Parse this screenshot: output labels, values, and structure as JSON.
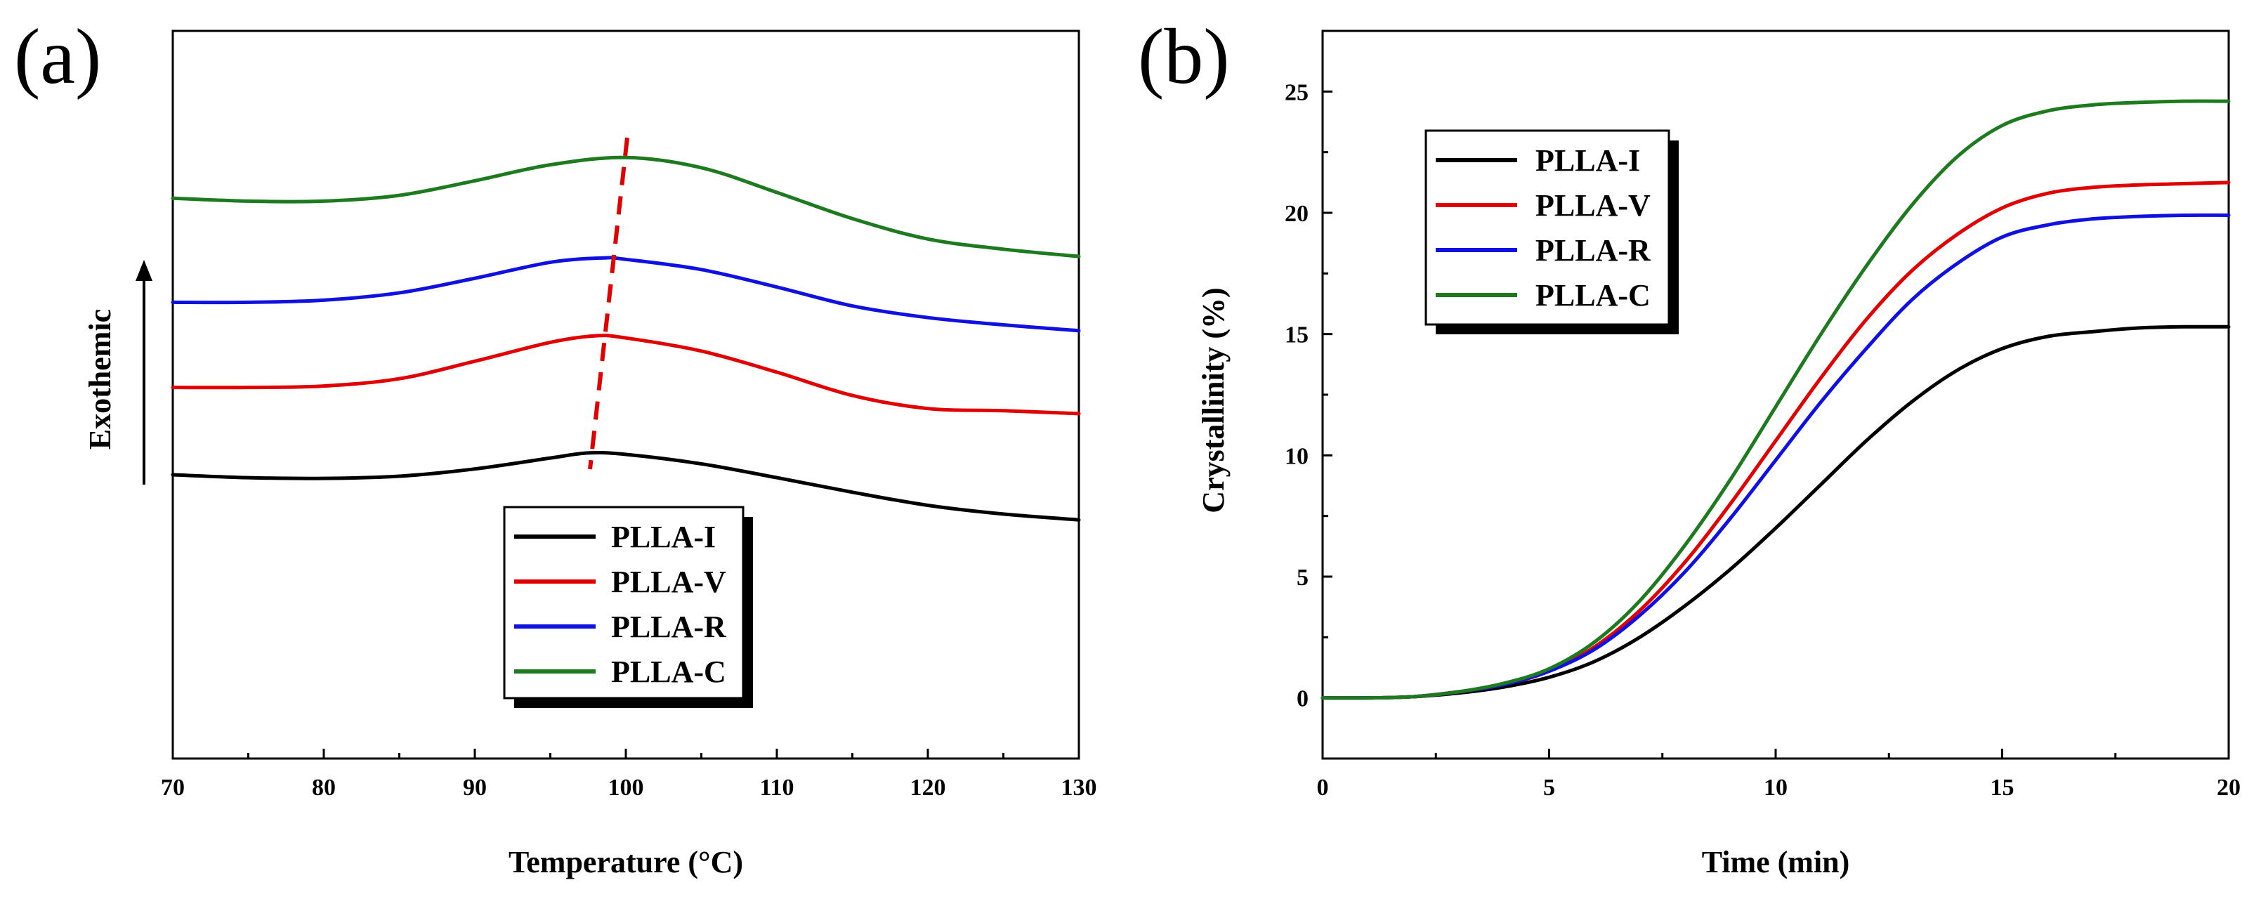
{
  "chart_data": [
    {
      "panel_label": "(a)",
      "type": "line",
      "xlabel": "Temperature (°C)",
      "ylabel": "Exothemic",
      "xlim": [
        70,
        130
      ],
      "ylim": [
        0,
        1
      ],
      "xticks": [
        "70",
        "80",
        "90",
        "100",
        "110",
        "120",
        "130"
      ],
      "yticks": [],
      "legend_position": "bottom-center",
      "annotation": "dashed red line tracing peak shift from ~97.5°C to ~100°C",
      "series": [
        {
          "name": "PLLA-I",
          "color": "#000000",
          "x": [
            70,
            75,
            80,
            85,
            90,
            95,
            97.5,
            100,
            105,
            110,
            115,
            120,
            125,
            130
          ],
          "y": [
            0.39,
            0.386,
            0.385,
            0.388,
            0.398,
            0.413,
            0.42,
            0.418,
            0.405,
            0.386,
            0.366,
            0.348,
            0.336,
            0.328
          ]
        },
        {
          "name": "PLLA-V",
          "color": "#e00000",
          "x": [
            70,
            75,
            80,
            85,
            90,
            95,
            98,
            100,
            105,
            110,
            115,
            120,
            125,
            130
          ],
          "y": [
            0.51,
            0.51,
            0.512,
            0.522,
            0.546,
            0.572,
            0.581,
            0.578,
            0.56,
            0.531,
            0.499,
            0.481,
            0.478,
            0.474
          ]
        },
        {
          "name": "PLLA-R",
          "color": "#1010e0",
          "x": [
            70,
            75,
            80,
            85,
            90,
            95,
            98.5,
            100,
            105,
            110,
            115,
            120,
            125,
            130
          ],
          "y": [
            0.627,
            0.627,
            0.63,
            0.64,
            0.66,
            0.682,
            0.688,
            0.686,
            0.672,
            0.648,
            0.622,
            0.606,
            0.596,
            0.588
          ]
        },
        {
          "name": "PLLA-C",
          "color": "#1e7a1e",
          "x": [
            70,
            75,
            80,
            85,
            90,
            95,
            100,
            105,
            110,
            115,
            120,
            125,
            130
          ],
          "y": [
            0.77,
            0.766,
            0.766,
            0.774,
            0.794,
            0.816,
            0.826,
            0.812,
            0.778,
            0.742,
            0.714,
            0.7,
            0.69
          ]
        }
      ]
    },
    {
      "panel_label": "(b)",
      "type": "line",
      "xlabel": "Time (min)",
      "ylabel": "Crystallinity (%)",
      "xlim": [
        0,
        20
      ],
      "ylim": [
        -2.5,
        27.5
      ],
      "xticks": [
        "0",
        "5",
        "10",
        "15",
        "20"
      ],
      "yticks": [
        "0",
        "5",
        "10",
        "15",
        "20",
        "25"
      ],
      "legend_position": "top-left",
      "series": [
        {
          "name": "PLLA-I",
          "color": "#000000",
          "x": [
            0,
            1,
            2,
            3,
            4,
            5,
            6,
            7,
            8,
            9,
            10,
            11,
            12,
            13,
            14,
            15,
            16,
            17,
            18,
            19,
            20
          ],
          "y": [
            0,
            0,
            0.05,
            0.2,
            0.45,
            0.85,
            1.5,
            2.5,
            3.8,
            5.3,
            7.0,
            8.8,
            10.6,
            12.2,
            13.5,
            14.4,
            14.9,
            15.1,
            15.25,
            15.3,
            15.3
          ]
        },
        {
          "name": "PLLA-V",
          "color": "#e00000",
          "x": [
            0,
            1,
            2,
            3,
            4,
            5,
            6,
            7,
            8,
            9,
            10,
            11,
            12,
            13,
            14,
            15,
            16,
            17,
            18,
            19,
            20
          ],
          "y": [
            0,
            0,
            0.05,
            0.25,
            0.55,
            1.1,
            2.1,
            3.6,
            5.6,
            8.0,
            10.6,
            13.2,
            15.6,
            17.6,
            19.1,
            20.2,
            20.8,
            21.05,
            21.15,
            21.2,
            21.25
          ]
        },
        {
          "name": "PLLA-R",
          "color": "#1010e0",
          "x": [
            0,
            1,
            2,
            3,
            4,
            5,
            6,
            7,
            8,
            9,
            10,
            11,
            12,
            13,
            14,
            15,
            16,
            17,
            18,
            19,
            20
          ],
          "y": [
            0,
            0,
            0.05,
            0.25,
            0.55,
            1.1,
            2.0,
            3.4,
            5.2,
            7.4,
            9.8,
            12.2,
            14.4,
            16.4,
            17.9,
            19.0,
            19.5,
            19.75,
            19.85,
            19.9,
            19.9
          ]
        },
        {
          "name": "PLLA-C",
          "color": "#1e7a1e",
          "x": [
            0,
            1,
            2,
            3,
            4,
            5,
            6,
            7,
            8,
            9,
            10,
            11,
            12,
            13,
            14,
            15,
            16,
            17,
            18,
            19,
            20
          ],
          "y": [
            0,
            0,
            0.05,
            0.25,
            0.6,
            1.2,
            2.3,
            4.0,
            6.3,
            9.0,
            12.0,
            15.0,
            17.8,
            20.3,
            22.3,
            23.6,
            24.2,
            24.45,
            24.55,
            24.6,
            24.6
          ]
        }
      ]
    }
  ]
}
